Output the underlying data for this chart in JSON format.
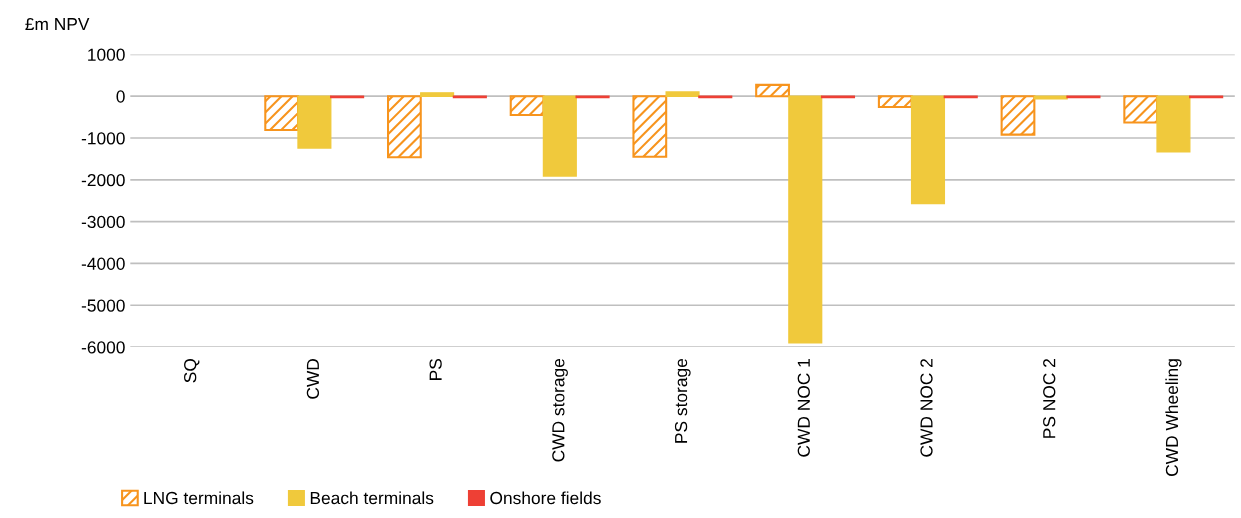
{
  "chart_data": {
    "type": "bar",
    "ylabel": "£m NPV",
    "categories": [
      "SQ",
      "CWD",
      "PS",
      "CWD storage",
      "PS storage",
      "CWD NOC 1",
      "CWD NOC 2",
      "PS NOC 2",
      "CWD Wheeling"
    ],
    "series": [
      {
        "name": "LNG terminals",
        "color": "#f7941d",
        "values": [
          null,
          -810,
          -1460,
          -450,
          -1450,
          270,
          -260,
          -920,
          -630
        ]
      },
      {
        "name": "Beach terminals",
        "color": "#f0c93c",
        "values": [
          null,
          -1240,
          80,
          -1910,
          100,
          -5900,
          -2570,
          -60,
          -1330
        ]
      },
      {
        "name": "Onshore fields",
        "color": "#ee4035",
        "values": [
          null,
          -30,
          -30,
          -30,
          -30,
          -30,
          -30,
          -30,
          -30
        ]
      }
    ],
    "ylim": [
      -6000,
      1000
    ],
    "yticks": [
      1000,
      0,
      -1000,
      -2000,
      -3000,
      -4000,
      -5000,
      -6000
    ],
    "grid": "y",
    "legend": "bottom left"
  }
}
